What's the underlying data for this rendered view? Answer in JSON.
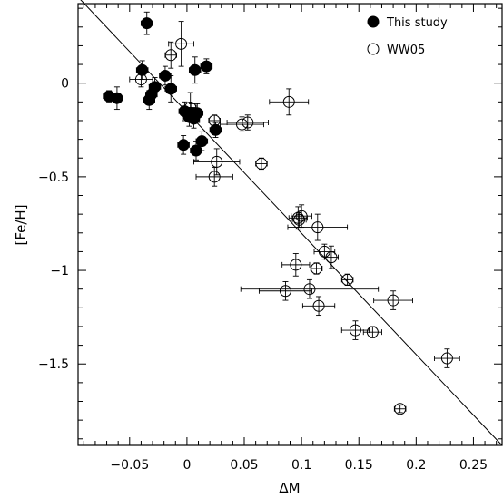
{
  "chart_data": {
    "type": "scatter",
    "xlabel": "ΔM",
    "ylabel": "[Fe/H]",
    "xlim": [
      -0.095,
      0.275
    ],
    "ylim": [
      -1.935,
      0.425
    ],
    "xticks": [
      -0.05,
      0,
      0.05,
      0.1,
      0.15,
      0.2,
      0.25
    ],
    "xtick_labels": [
      "−0.05",
      "0",
      "0.05",
      "0.1",
      "0.15",
      "0.2",
      "0.25"
    ],
    "yticks": [
      0,
      -0.5,
      -1,
      -1.5
    ],
    "ytick_labels": [
      "0",
      "−0.5",
      "−1",
      "−1.5"
    ],
    "grid": false,
    "legend_position": "top-right",
    "fit_line": {
      "x": [
        -0.095,
        0.275
      ],
      "y": [
        0.46,
        -1.935
      ]
    },
    "series": [
      {
        "name": "This study",
        "marker": "filled-circle",
        "points": [
          {
            "x": -0.068,
            "y": -0.07,
            "xerr": 0.005,
            "yerr": 0.03
          },
          {
            "x": -0.061,
            "y": -0.08,
            "xerr": 0.005,
            "yerr": 0.06
          },
          {
            "x": -0.039,
            "y": 0.07,
            "xerr": 0.005,
            "yerr": 0.05
          },
          {
            "x": -0.035,
            "y": 0.32,
            "xerr": 0.005,
            "yerr": 0.06
          },
          {
            "x": -0.033,
            "y": -0.09,
            "xerr": 0.005,
            "yerr": 0.05
          },
          {
            "x": -0.031,
            "y": -0.06,
            "xerr": 0.005,
            "yerr": 0.05
          },
          {
            "x": -0.028,
            "y": -0.02,
            "xerr": 0.005,
            "yerr": 0.05
          },
          {
            "x": -0.019,
            "y": 0.04,
            "xerr": 0.005,
            "yerr": 0.05
          },
          {
            "x": -0.014,
            "y": -0.03,
            "xerr": 0.005,
            "yerr": 0.07
          },
          {
            "x": -0.003,
            "y": -0.33,
            "xerr": 0.005,
            "yerr": 0.05
          },
          {
            "x": -0.002,
            "y": -0.15,
            "xerr": 0.005,
            "yerr": 0.05
          },
          {
            "x": 0.002,
            "y": -0.18,
            "xerr": 0.005,
            "yerr": 0.05
          },
          {
            "x": 0.004,
            "y": -0.16,
            "xerr": 0.005,
            "yerr": 0.05
          },
          {
            "x": 0.006,
            "y": -0.19,
            "xerr": 0.005,
            "yerr": 0.05
          },
          {
            "x": 0.007,
            "y": 0.07,
            "xerr": 0.005,
            "yerr": 0.07
          },
          {
            "x": 0.008,
            "y": -0.36,
            "xerr": 0.005,
            "yerr": 0.05
          },
          {
            "x": 0.009,
            "y": -0.16,
            "xerr": 0.005,
            "yerr": 0.05
          },
          {
            "x": 0.013,
            "y": -0.31,
            "xerr": 0.005,
            "yerr": 0.05
          },
          {
            "x": 0.017,
            "y": 0.09,
            "xerr": 0.005,
            "yerr": 0.04
          },
          {
            "x": 0.025,
            "y": -0.25,
            "xerr": 0.005,
            "yerr": 0.04
          }
        ]
      },
      {
        "name": "WW05",
        "marker": "open-circle",
        "points": [
          {
            "x": -0.04,
            "y": 0.02,
            "xerr": 0.01,
            "yerr": 0.04
          },
          {
            "x": -0.005,
            "y": 0.21,
            "xerr": 0.011,
            "yerr": 0.12
          },
          {
            "x": -0.014,
            "y": 0.15,
            "xerr": 0.005,
            "yerr": 0.07
          },
          {
            "x": 0.003,
            "y": -0.13,
            "xerr": 0.005,
            "yerr": 0.08
          },
          {
            "x": 0.024,
            "y": -0.2,
            "xerr": 0.005,
            "yerr": 0.03
          },
          {
            "x": 0.024,
            "y": -0.5,
            "xerr": 0.016,
            "yerr": 0.05
          },
          {
            "x": 0.026,
            "y": -0.42,
            "xerr": 0.02,
            "yerr": 0.07
          },
          {
            "x": 0.048,
            "y": -0.22,
            "xerr": 0.019,
            "yerr": 0.04
          },
          {
            "x": 0.053,
            "y": -0.21,
            "xerr": 0.018,
            "yerr": 0.04
          },
          {
            "x": 0.065,
            "y": -0.43,
            "xerr": 0.005,
            "yerr": 0.03
          },
          {
            "x": 0.089,
            "y": -0.1,
            "xerr": 0.017,
            "yerr": 0.07
          },
          {
            "x": 0.097,
            "y": -0.72,
            "xerr": 0.008,
            "yerr": 0.06
          },
          {
            "x": 0.1,
            "y": -0.71,
            "xerr": 0.009,
            "yerr": 0.06
          },
          {
            "x": 0.098,
            "y": -0.73,
            "xerr": 0.006,
            "yerr": 0.04
          },
          {
            "x": 0.114,
            "y": -0.77,
            "xerr": 0.026,
            "yerr": 0.07
          },
          {
            "x": 0.12,
            "y": -0.9,
            "xerr": 0.009,
            "yerr": 0.04
          },
          {
            "x": 0.126,
            "y": -0.93,
            "xerr": 0.006,
            "yerr": 0.06
          },
          {
            "x": 0.113,
            "y": -0.99,
            "xerr": 0.005,
            "yerr": 0.03
          },
          {
            "x": 0.095,
            "y": -0.97,
            "xerr": 0.012,
            "yerr": 0.06
          },
          {
            "x": 0.086,
            "y": -1.11,
            "xerr": 0.023,
            "yerr": 0.05
          },
          {
            "x": 0.107,
            "y": -1.1,
            "xerr": 0.06,
            "yerr": 0.05
          },
          {
            "x": 0.115,
            "y": -1.19,
            "xerr": 0.014,
            "yerr": 0.05
          },
          {
            "x": 0.14,
            "y": -1.05,
            "xerr": 0.005,
            "yerr": 0.03
          },
          {
            "x": 0.147,
            "y": -1.32,
            "xerr": 0.012,
            "yerr": 0.05
          },
          {
            "x": 0.162,
            "y": -1.33,
            "xerr": 0.008,
            "yerr": 0.03
          },
          {
            "x": 0.18,
            "y": -1.16,
            "xerr": 0.017,
            "yerr": 0.05
          },
          {
            "x": 0.186,
            "y": -1.74,
            "xerr": 0.005,
            "yerr": 0.02
          },
          {
            "x": 0.227,
            "y": -1.47,
            "xerr": 0.011,
            "yerr": 0.05
          }
        ]
      }
    ]
  }
}
